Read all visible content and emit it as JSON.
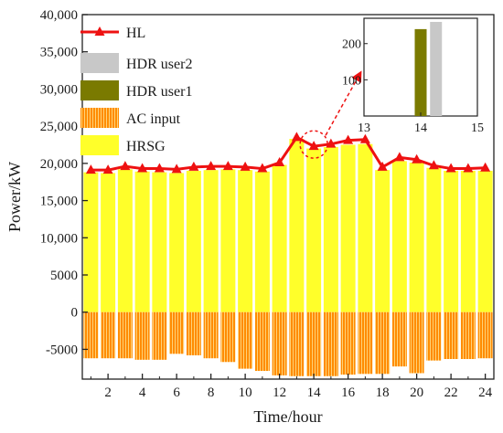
{
  "chart_data": [
    {
      "type": "bar",
      "xlabel": "Time/hour",
      "ylabel": "Power/kW",
      "x": [
        1,
        2,
        3,
        4,
        5,
        6,
        7,
        8,
        9,
        10,
        11,
        12,
        13,
        14,
        15,
        16,
        17,
        18,
        19,
        20,
        21,
        22,
        23,
        24
      ],
      "x_ticks": [
        "2",
        "4",
        "6",
        "8",
        "10",
        "12",
        "14",
        "16",
        "18",
        "20",
        "22",
        "24"
      ],
      "x_tick_values": [
        2,
        4,
        6,
        8,
        10,
        12,
        14,
        16,
        18,
        20,
        22,
        24
      ],
      "ylim": [
        -9000,
        40000
      ],
      "y_ticks": [
        "-5000",
        "0",
        "5000",
        "10,000",
        "15,000",
        "20,000",
        "25,000",
        "30,000",
        "35,000",
        "40,000"
      ],
      "y_tick_values": [
        -5000,
        0,
        5000,
        10000,
        15000,
        20000,
        25000,
        30000,
        35000,
        40000
      ],
      "stacked": true,
      "series": [
        {
          "name": "HRSG",
          "type": "bar",
          "color": "#ffff2a",
          "values": [
            18800,
            18700,
            19200,
            18900,
            18800,
            18700,
            19000,
            19100,
            19200,
            19100,
            18900,
            19800,
            23300,
            22000,
            22200,
            22500,
            22600,
            19100,
            20300,
            20100,
            19400,
            19000,
            19000,
            19000
          ]
        },
        {
          "name": "AC input",
          "type": "bar",
          "color": "#ff8c00",
          "values": [
            -6200,
            -6200,
            -6200,
            -6400,
            -6400,
            -5600,
            -5800,
            -6200,
            -6700,
            -7600,
            -7900,
            -8500,
            -8600,
            -8600,
            -8600,
            -8400,
            -8300,
            -8300,
            -7300,
            -8200,
            -6500,
            -6300,
            -6300,
            -6200
          ]
        },
        {
          "name": "HDR user1",
          "type": "bar",
          "color": "#7a7a00",
          "values": [
            0,
            0,
            0,
            0,
            0,
            0,
            0,
            0,
            0,
            0,
            0,
            0,
            0,
            240,
            0,
            0,
            0,
            0,
            0,
            0,
            0,
            0,
            0,
            0
          ]
        },
        {
          "name": "HDR user2",
          "type": "bar",
          "color": "#c8c8c8",
          "values": [
            0,
            0,
            0,
            0,
            0,
            0,
            0,
            0,
            0,
            0,
            0,
            0,
            0,
            260,
            0,
            0,
            0,
            0,
            0,
            0,
            0,
            0,
            0,
            0
          ]
        },
        {
          "name": "HL",
          "type": "line",
          "color": "#ee1111",
          "marker": "triangle",
          "values": [
            19100,
            19100,
            19600,
            19300,
            19300,
            19200,
            19500,
            19600,
            19600,
            19500,
            19300,
            20100,
            23500,
            22300,
            22600,
            23100,
            23200,
            19500,
            20800,
            20500,
            19700,
            19300,
            19300,
            19400
          ]
        }
      ],
      "legend_position": "top-left",
      "grid": false
    },
    {
      "type": "bar",
      "inset": true,
      "xlim": [
        13,
        15
      ],
      "ylim": [
        0,
        270
      ],
      "x_ticks": [
        "13",
        "14",
        "15"
      ],
      "x_tick_values": [
        13,
        14,
        15
      ],
      "y_ticks": [
        "100",
        "200"
      ],
      "y_tick_values": [
        100,
        200
      ],
      "series": [
        {
          "name": "HDR user1",
          "color": "#7a7a00",
          "x": 14.0,
          "value": 240
        },
        {
          "name": "HDR user2",
          "color": "#c8c8c8",
          "x": 14.27,
          "value": 260
        }
      ],
      "grid": false
    }
  ]
}
